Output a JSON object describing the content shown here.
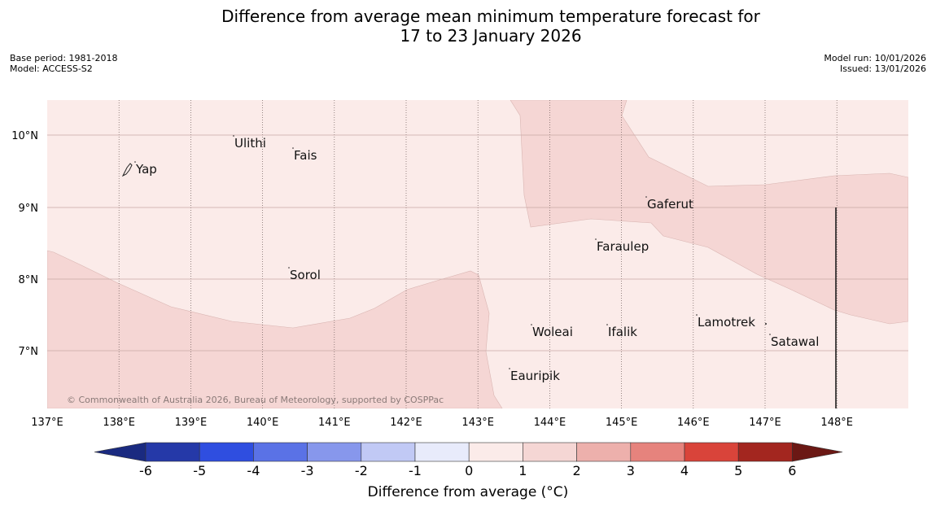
{
  "title_line1": "Difference from average mean minimum temperature forecast for",
  "title_line2": "17 to 23 January 2026",
  "meta_left": {
    "base_period": "Base period: 1981-2018",
    "model": "Model: ACCESS-S2"
  },
  "meta_right": {
    "model_run": "Model run: 10/01/2026",
    "issued": "Issued: 13/01/2026"
  },
  "copyright": "© Commonwealth of Australia 2026, Bureau of Meteorology, supported by COSPPac",
  "map": {
    "lon_ticks": [
      "137°E",
      "138°E",
      "139°E",
      "140°E",
      "141°E",
      "142°E",
      "143°E",
      "144°E",
      "145°E",
      "146°E",
      "147°E",
      "148°E"
    ],
    "lat_ticks": [
      "10°N",
      "9°N",
      "8°N",
      "7°N"
    ],
    "colors": {
      "light_band": "#fbebe9",
      "medium_band": "#f5d6d4",
      "grid": "#c9a8a6"
    },
    "places": [
      {
        "name": "Yap"
      },
      {
        "name": "Ulithi"
      },
      {
        "name": "Fais"
      },
      {
        "name": "Gaferut"
      },
      {
        "name": "Faraulep"
      },
      {
        "name": "Sorol"
      },
      {
        "name": "Woleai"
      },
      {
        "name": "Ifalik"
      },
      {
        "name": "Lamotrek"
      },
      {
        "name": "Satawal"
      },
      {
        "name": "Eauripik"
      }
    ]
  },
  "colorbar": {
    "title": "Difference from average (°C)",
    "ticks": [
      "-6",
      "-5",
      "-4",
      "-3",
      "-2",
      "-1",
      "0",
      "1",
      "2",
      "3",
      "4",
      "5",
      "6"
    ],
    "colors": [
      "#2539a8",
      "#2f4ee0",
      "#5a72e6",
      "#8797ec",
      "#c1c9f5",
      "#e8ebfb",
      "#fbebe9",
      "#f5d6d4",
      "#edb0ac",
      "#e6837d",
      "#d9443a",
      "#a3261f"
    ],
    "under_color": "#1a2a80",
    "over_color": "#6b1814"
  }
}
